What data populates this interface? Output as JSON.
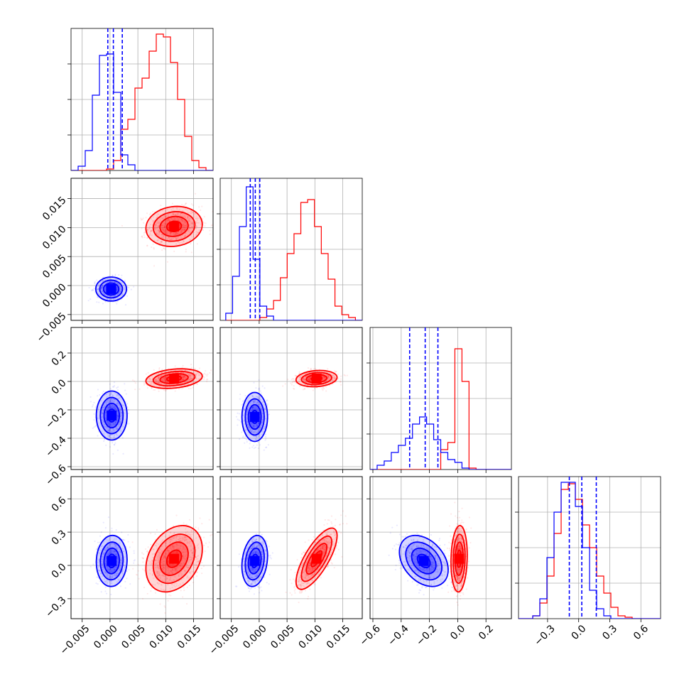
{
  "chart_data": {
    "type": "corner",
    "colors": {
      "blue": "#0000ff",
      "red": "#ff0000",
      "grid": "#b0b0b0"
    },
    "grid": true,
    "axes": {
      "x": {
        "param0": {
          "range": [
            -0.007,
            0.0185
          ],
          "ticks": [
            -0.005,
            0.0,
            0.005,
            0.01,
            0.015
          ],
          "ticklabels": [
            "−0.005",
            "0.000",
            "0.005",
            "0.010",
            "0.015"
          ]
        },
        "param1": {
          "range": [
            -0.007,
            0.0185
          ],
          "ticks": [
            -0.005,
            0.0,
            0.005,
            0.01,
            0.015
          ],
          "ticklabels": [
            "−0.005",
            "0.000",
            "0.005",
            "0.010",
            "0.015"
          ]
        },
        "param2": {
          "range": [
            -0.62,
            0.38
          ],
          "ticks": [
            -0.6,
            -0.4,
            -0.2,
            0.0,
            0.2
          ],
          "ticklabels": [
            "−0.6",
            "−0.4",
            "−0.2",
            "0.0",
            "0.2"
          ]
        },
        "param3": {
          "range": [
            -0.58,
            0.79
          ],
          "ticks": [
            -0.3,
            0.0,
            0.3,
            0.6
          ],
          "ticklabels": [
            "−0.3",
            "0.0",
            "0.3",
            "0.6"
          ]
        }
      },
      "y": {
        "param1": {
          "range": [
            -0.006,
            0.0185
          ],
          "ticks": [
            -0.005,
            0.0,
            0.005,
            0.01,
            0.015
          ],
          "ticklabels": [
            "−0.005",
            "0.000",
            "0.005",
            "0.010",
            "0.015"
          ]
        },
        "param2": {
          "range": [
            -0.62,
            0.38
          ],
          "ticks": [
            -0.6,
            -0.4,
            -0.2,
            0.0,
            0.2
          ],
          "ticklabels": [
            "−0.6",
            "−0.4",
            "−0.2",
            "0.0",
            "0.2"
          ]
        },
        "param3": {
          "range": [
            -0.48,
            0.8
          ],
          "ticks": [
            -0.3,
            0.0,
            0.3,
            0.6
          ],
          "ticklabels": [
            "−0.3",
            "0.0",
            "0.3",
            "0.6"
          ]
        }
      }
    },
    "histograms": [
      {
        "param": "param0",
        "ymax": 1.0,
        "blue": {
          "range": [
            -0.007,
            0.0185
          ],
          "values": [
            0.0,
            0.03,
            0.14,
            0.53,
            0.81,
            0.82,
            0.55,
            0.11,
            0.04,
            0.0,
            0.0,
            0.0,
            0.0,
            0.0,
            0.0,
            0.0,
            0.0,
            0.0,
            0.0,
            0.0
          ]
        },
        "red": {
          "range": [
            -0.007,
            0.0185
          ],
          "values": [
            0.0,
            0.0,
            0.0,
            0.0,
            0.0,
            0.01,
            0.07,
            0.29,
            0.36,
            0.58,
            0.65,
            0.84,
            0.96,
            0.94,
            0.76,
            0.5,
            0.24,
            0.07,
            0.02,
            0.0
          ]
        },
        "quantiles": [
          -0.0004,
          0.0006,
          0.0022
        ]
      },
      {
        "param": "param1",
        "ymax": 1.0,
        "blue": {
          "range": [
            -0.006,
            0.0185
          ],
          "values": [
            0.05,
            0.31,
            0.66,
            0.94,
            0.43,
            0.1,
            0.03,
            0.0,
            0.0,
            0.0,
            0.0,
            0.0,
            0.0,
            0.0,
            0.0,
            0.0,
            0.0,
            0.0,
            0.0,
            0.0
          ]
        },
        "red": {
          "range": [
            -0.006,
            0.0185
          ],
          "values": [
            0.0,
            0.0,
            0.0,
            0.0,
            0.0,
            0.02,
            0.08,
            0.14,
            0.3,
            0.47,
            0.61,
            0.83,
            0.85,
            0.66,
            0.47,
            0.29,
            0.1,
            0.04,
            0.02,
            0.0
          ]
        },
        "quantiles": [
          -0.0016,
          -0.0007,
          0.0001
        ]
      },
      {
        "param": "param2",
        "ymax": 1.0,
        "blue": {
          "range": [
            -0.62,
            0.38
          ],
          "values": [
            0.0,
            0.03,
            0.06,
            0.12,
            0.17,
            0.22,
            0.32,
            0.37,
            0.32,
            0.21,
            0.12,
            0.07,
            0.05,
            0.01,
            0.0,
            0.0,
            0.0,
            0.0,
            0.0,
            0.0
          ]
        },
        "red": {
          "range": [
            -0.62,
            0.38
          ],
          "values": [
            0.0,
            0.0,
            0.0,
            0.0,
            0.0,
            0.0,
            0.0,
            0.0,
            0.0,
            0.0,
            0.14,
            0.19,
            0.85,
            0.62,
            0.01,
            0.0,
            0.0,
            0.0,
            0.0,
            0.0
          ]
        },
        "quantiles": [
          -0.34,
          -0.23,
          -0.14
        ]
      },
      {
        "param": "param3",
        "ymax": 1.0,
        "blue": {
          "range": [
            -0.58,
            0.79
          ],
          "values": [
            0.0,
            0.0,
            0.02,
            0.14,
            0.43,
            0.75,
            0.96,
            0.96,
            0.79,
            0.5,
            0.2,
            0.07,
            0.02,
            0.0,
            0.0,
            0.0,
            0.0,
            0.0,
            0.0,
            0.0
          ]
        },
        "red": {
          "range": [
            -0.58,
            0.79
          ],
          "values": [
            0.0,
            0.0,
            0.02,
            0.11,
            0.3,
            0.6,
            0.91,
            0.95,
            0.84,
            0.66,
            0.5,
            0.3,
            0.18,
            0.08,
            0.02,
            0.01,
            0.0,
            0.0,
            0.0,
            0.0
          ]
        },
        "quantiles": [
          -0.09,
          0.03,
          0.17
        ]
      }
    ],
    "pairs": [
      {
        "x": "param0",
        "y": "param1",
        "blue": {
          "center": [
            0.0002,
            -0.0006
          ],
          "sigma": [
            0.0012,
            0.0009
          ],
          "rho": 0.0
        },
        "red": {
          "center": [
            0.0115,
            0.0102
          ],
          "sigma": [
            0.0022,
            0.0015
          ],
          "rho": 0.1
        }
      },
      {
        "x": "param0",
        "y": "param2",
        "blue": {
          "center": [
            0.0003,
            -0.24
          ],
          "sigma": [
            0.0012,
            0.075
          ],
          "rho": 0.0
        },
        "red": {
          "center": [
            0.0115,
            0.02
          ],
          "sigma": [
            0.0022,
            0.03
          ],
          "rho": 0.25
        }
      },
      {
        "x": "param1",
        "y": "param2",
        "blue": {
          "center": [
            -0.0008,
            -0.25
          ],
          "sigma": [
            0.001,
            0.075
          ],
          "rho": 0.0
        },
        "red": {
          "center": [
            0.0103,
            0.02
          ],
          "sigma": [
            0.0016,
            0.025
          ],
          "rho": 0.15
        }
      },
      {
        "x": "param0",
        "y": "param3",
        "blue": {
          "center": [
            0.0003,
            0.04
          ],
          "sigma": [
            0.0012,
            0.1
          ],
          "rho": 0.05
        },
        "red": {
          "center": [
            0.0115,
            0.06
          ],
          "sigma": [
            0.0022,
            0.13
          ],
          "rho": 0.3
        }
      },
      {
        "x": "param1",
        "y": "param3",
        "blue": {
          "center": [
            -0.0008,
            0.04
          ],
          "sigma": [
            0.001,
            0.1
          ],
          "rho": 0.2
        },
        "red": {
          "center": [
            0.0103,
            0.06
          ],
          "sigma": [
            0.0016,
            0.12
          ],
          "rho": 0.75
        }
      },
      {
        "x": "param2",
        "y": "param3",
        "blue": {
          "center": [
            -0.24,
            0.04
          ],
          "sigma": [
            0.075,
            0.1
          ],
          "rho": -0.35
        },
        "red": {
          "center": [
            0.01,
            0.06
          ],
          "sigma": [
            0.025,
            0.13
          ],
          "rho": 0.1
        }
      }
    ]
  }
}
